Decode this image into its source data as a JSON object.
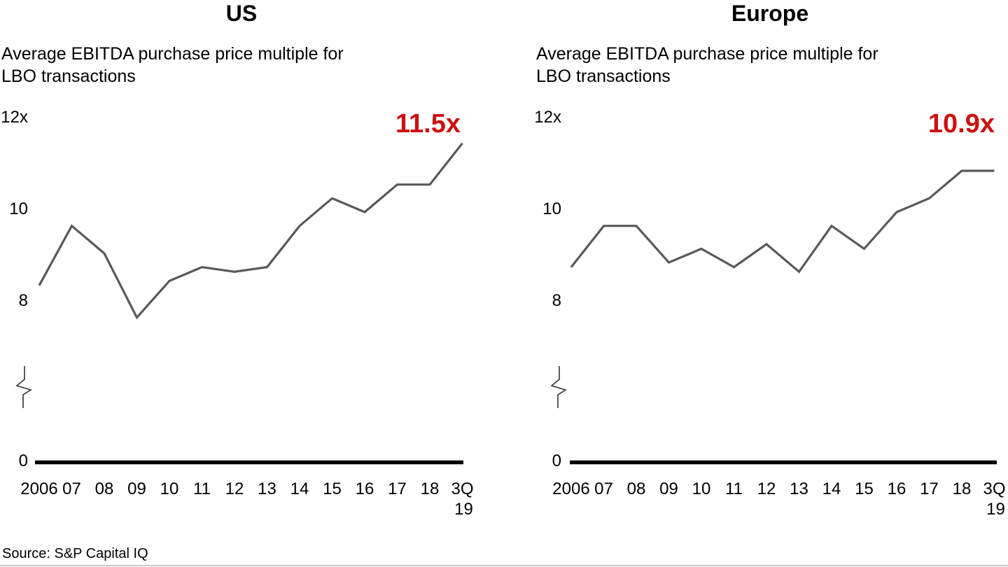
{
  "page": {
    "source": "Source: S&P Capital IQ",
    "background": "#ffffff",
    "text_color": "#000000"
  },
  "chart_data": [
    {
      "type": "line",
      "title": "US",
      "subtitle_line1": "Average EBITDA purchase price multiple for",
      "subtitle_line2": "LBO transactions",
      "categories": [
        "2006",
        "07",
        "08",
        "09",
        "10",
        "11",
        "12",
        "13",
        "14",
        "15",
        "16",
        "17",
        "18",
        "3Q 19"
      ],
      "values": [
        8.4,
        9.7,
        9.1,
        7.7,
        8.5,
        8.8,
        8.7,
        8.8,
        9.7,
        10.3,
        10.0,
        10.6,
        10.6,
        11.5
      ],
      "end_label": "11.5x",
      "yticks": [
        {
          "value": 12,
          "label": "12x"
        },
        {
          "value": 10,
          "label": "10"
        },
        {
          "value": 8,
          "label": "8"
        },
        {
          "value": 0,
          "label": "0"
        }
      ],
      "ylim": [
        0,
        12
      ],
      "axis_break": true,
      "grid": false,
      "legend": false,
      "xlabel": "",
      "ylabel": "",
      "line_color": "#595959",
      "callout_color": "#cc1111",
      "axis_color": "#000000"
    },
    {
      "type": "line",
      "title": "Europe",
      "subtitle_line1": "Average EBITDA purchase price multiple for",
      "subtitle_line2": "LBO transactions",
      "categories": [
        "2006",
        "07",
        "08",
        "09",
        "10",
        "11",
        "12",
        "13",
        "14",
        "15",
        "16",
        "17",
        "18",
        "3Q 19"
      ],
      "values": [
        8.8,
        9.7,
        9.7,
        8.9,
        9.2,
        8.8,
        9.3,
        8.7,
        9.7,
        9.2,
        10.0,
        10.3,
        10.9,
        10.9
      ],
      "end_label": "10.9x",
      "yticks": [
        {
          "value": 12,
          "label": "12x"
        },
        {
          "value": 10,
          "label": "10"
        },
        {
          "value": 8,
          "label": "8"
        },
        {
          "value": 0,
          "label": "0"
        }
      ],
      "ylim": [
        0,
        12
      ],
      "axis_break": true,
      "grid": false,
      "legend": false,
      "xlabel": "",
      "ylabel": "",
      "line_color": "#595959",
      "callout_color": "#cc1111",
      "axis_color": "#000000"
    }
  ]
}
